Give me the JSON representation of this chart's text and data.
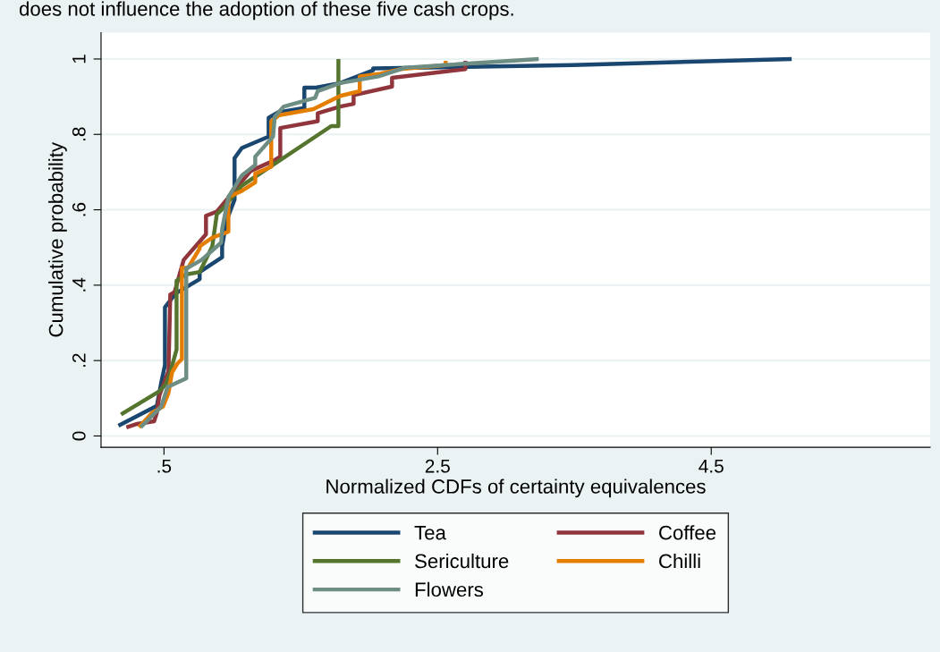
{
  "chart_data": {
    "type": "line",
    "xlabel": "Normalized CDFs of certainty equivalences",
    "ylabel": "Cumulative probability",
    "annotations": [
      "does not influence the adoption of these five cash crops."
    ],
    "xlim": [
      0.04,
      6.1
    ],
    "ylim": [
      -0.03,
      1.07
    ],
    "xticks": [
      {
        "value": 0.5,
        "label": ".5"
      },
      2.5,
      4.5
    ],
    "yticks": [
      0,
      {
        "value": 0.2,
        "label": ".2"
      },
      {
        "value": 0.4,
        "label": ".4"
      },
      {
        "value": 0.6,
        "label": ".6"
      },
      {
        "value": 0.8,
        "label": ".8"
      },
      1
    ],
    "grid": "y",
    "legend": "bottom",
    "marker": "none",
    "line_style": "solid",
    "series": [
      {
        "name": "Tea",
        "color": "#1a476f",
        "x": [
          0.167,
          0.448,
          0.48,
          0.507,
          0.507,
          0.585,
          0.761,
          0.761,
          0.925,
          0.925,
          0.958,
          1.016,
          1.016,
          1.069,
          1.265,
          1.265,
          1.33,
          1.526,
          1.526,
          1.611,
          1.788,
          2.029,
          2.029,
          3.487,
          5.088
        ],
        "values": [
          0.027,
          0.08,
          0.142,
          0.188,
          0.341,
          0.378,
          0.416,
          0.435,
          0.474,
          0.503,
          0.572,
          0.627,
          0.737,
          0.764,
          0.794,
          0.844,
          0.858,
          0.87,
          0.924,
          0.924,
          0.936,
          0.97,
          0.975,
          0.984,
          1.0
        ]
      },
      {
        "name": "Coffee",
        "color": "#90353b",
        "x": [
          0.225,
          0.304,
          0.428,
          0.448,
          0.467,
          0.513,
          0.533,
          0.546,
          0.578,
          0.644,
          0.807,
          0.807,
          0.886,
          1.069,
          1.134,
          1.31,
          1.35,
          1.35,
          1.624,
          1.624,
          1.788,
          1.886,
          1.886,
          2.167,
          2.167,
          2.703,
          2.703
        ],
        "values": [
          0.023,
          0.032,
          0.039,
          0.062,
          0.108,
          0.153,
          0.172,
          0.375,
          0.382,
          0.467,
          0.535,
          0.584,
          0.595,
          0.675,
          0.703,
          0.732,
          0.741,
          0.817,
          0.835,
          0.856,
          0.874,
          0.881,
          0.904,
          0.927,
          0.95,
          0.973,
          0.995
        ]
      },
      {
        "name": "Sericulture",
        "color": "#55752f",
        "x": [
          0.186,
          0.467,
          0.513,
          0.546,
          0.592,
          0.592,
          0.657,
          0.761,
          0.853,
          0.886,
          0.938,
          1.069,
          1.722,
          1.775,
          1.775
        ],
        "values": [
          0.057,
          0.119,
          0.137,
          0.169,
          0.229,
          0.412,
          0.428,
          0.435,
          0.503,
          0.588,
          0.606,
          0.664,
          0.822,
          0.822,
          1.0
        ]
      },
      {
        "name": "Chilli",
        "color": "#e37e00",
        "x": [
          0.317,
          0.415,
          0.493,
          0.533,
          0.559,
          0.598,
          0.631,
          0.631,
          0.676,
          0.761,
          0.761,
          0.853,
          0.971,
          0.971,
          1.069,
          1.167,
          1.167,
          1.284,
          1.284,
          1.343,
          1.592,
          1.788,
          1.931,
          1.931,
          2.082,
          2.225,
          2.559,
          2.559
        ],
        "values": [
          0.023,
          0.062,
          0.078,
          0.114,
          0.169,
          0.192,
          0.204,
          0.446,
          0.446,
          0.497,
          0.503,
          0.526,
          0.542,
          0.634,
          0.65,
          0.673,
          0.696,
          0.714,
          0.835,
          0.851,
          0.867,
          0.902,
          0.915,
          0.954,
          0.961,
          0.973,
          0.984,
          0.995
        ]
      },
      {
        "name": "Flowers",
        "color": "#6e8e84",
        "x": [
          0.33,
          0.48,
          0.526,
          0.663,
          0.663,
          0.775,
          0.918,
          0.925,
          0.971,
          1.069,
          1.167,
          1.167,
          1.297,
          1.31,
          1.376,
          1.605,
          1.624,
          1.788,
          2.069,
          2.265,
          3.239
        ],
        "values": [
          0.023,
          0.078,
          0.13,
          0.153,
          0.444,
          0.467,
          0.513,
          0.549,
          0.634,
          0.691,
          0.719,
          0.741,
          0.794,
          0.847,
          0.874,
          0.897,
          0.915,
          0.936,
          0.954,
          0.977,
          1.0
        ]
      }
    ]
  }
}
